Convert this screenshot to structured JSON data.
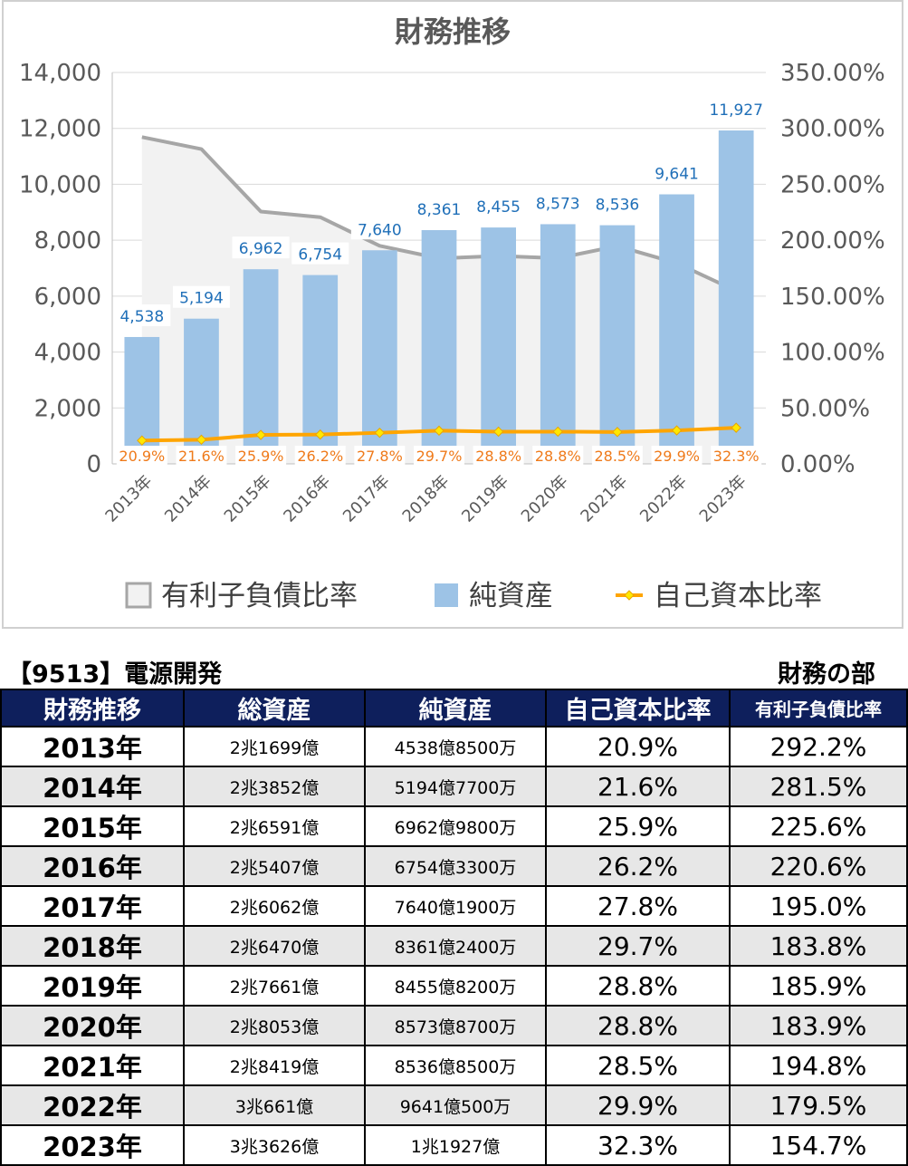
{
  "chart_data": {
    "type": "bar",
    "title": "財務推移",
    "categories": [
      "2013年",
      "2014年",
      "2015年",
      "2016年",
      "2017年",
      "2018年",
      "2019年",
      "2020年",
      "2021年",
      "2022年",
      "2023年"
    ],
    "series": [
      {
        "name": "有利子負債比率",
        "kind": "area",
        "axis": "right",
        "values": [
          292.2,
          281.5,
          225.6,
          220.6,
          195.0,
          183.8,
          185.9,
          183.9,
          194.8,
          179.5,
          154.7
        ]
      },
      {
        "name": "純資産",
        "kind": "bar",
        "axis": "left",
        "values": [
          4538,
          5194,
          6962,
          6754,
          7640,
          8361,
          8455,
          8573,
          8536,
          9641,
          11927
        ],
        "labels": [
          "4,538",
          "5,194",
          "6,962",
          "6,754",
          "7,640",
          "8,361",
          "8,455",
          "8,573",
          "8,536",
          "9,641",
          "11,927"
        ]
      },
      {
        "name": "自己資本比率",
        "kind": "line",
        "axis": "right",
        "values": [
          20.9,
          21.6,
          25.9,
          26.2,
          27.8,
          29.7,
          28.8,
          28.8,
          28.5,
          29.9,
          32.3
        ],
        "labels": [
          "20.9%",
          "21.6%",
          "25.9%",
          "26.2%",
          "27.8%",
          "29.7%",
          "28.8%",
          "28.8%",
          "28.5%",
          "29.9%",
          "32.3%"
        ]
      }
    ],
    "ylim": [
      0,
      14000
    ],
    "y_ticks": [
      "0",
      "2,000",
      "4,000",
      "6,000",
      "8,000",
      "10,000",
      "12,000",
      "14,000"
    ],
    "y2lim": [
      0,
      350
    ],
    "y2_ticks": [
      "0.00%",
      "50.00%",
      "100.00%",
      "150.00%",
      "200.00%",
      "250.00%",
      "300.00%",
      "350.00%"
    ],
    "legend_position": "bottom",
    "grid": true,
    "colors": {
      "bar": "#9dc3e6",
      "area_fill": "#f2f2f2",
      "area_line": "#a6a6a6",
      "line": "#ffa500",
      "marker": "#ffe800"
    }
  },
  "table": {
    "company": "【9513】電源開発",
    "section": "財務の部",
    "headers": [
      "財務推移",
      "総資産",
      "純資産",
      "自己資本比率",
      "有利子負債比率"
    ],
    "rows": [
      [
        "2013年",
        "2兆1699億",
        "4538億8500万",
        "20.9%",
        "292.2%"
      ],
      [
        "2014年",
        "2兆3852億",
        "5194億7700万",
        "21.6%",
        "281.5%"
      ],
      [
        "2015年",
        "2兆6591億",
        "6962億9800万",
        "25.9%",
        "225.6%"
      ],
      [
        "2016年",
        "2兆5407億",
        "6754億3300万",
        "26.2%",
        "220.6%"
      ],
      [
        "2017年",
        "2兆6062億",
        "7640億1900万",
        "27.8%",
        "195.0%"
      ],
      [
        "2018年",
        "2兆6470億",
        "8361億2400万",
        "29.7%",
        "183.8%"
      ],
      [
        "2019年",
        "2兆7661億",
        "8455億8200万",
        "28.8%",
        "185.9%"
      ],
      [
        "2020年",
        "2兆8053億",
        "8573億8700万",
        "28.8%",
        "183.9%"
      ],
      [
        "2021年",
        "2兆8419億",
        "8536億8500万",
        "28.5%",
        "194.8%"
      ],
      [
        "2022年",
        "3兆661億",
        "9641億500万",
        "29.9%",
        "179.5%"
      ],
      [
        "2023年",
        "3兆3626億",
        "1兆1927億",
        "32.3%",
        "154.7%"
      ]
    ]
  }
}
